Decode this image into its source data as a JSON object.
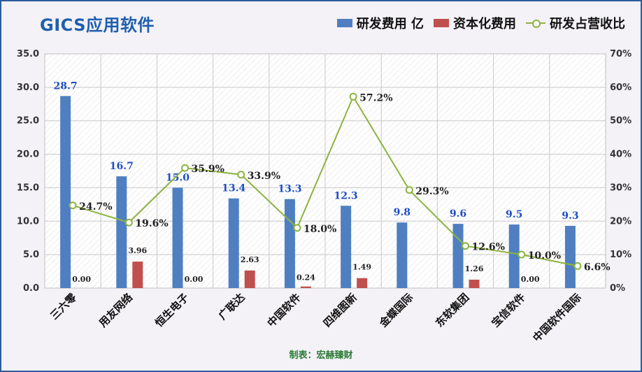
{
  "title": "GICS应用软件",
  "footer": "制表：宏赫臻财",
  "colors": {
    "rd": "#4f7fc1",
    "cap": "#c0504d",
    "ratio": "#8cb33f"
  },
  "chart_data": {
    "type": "bar",
    "categories": [
      "三六零",
      "用友网络",
      "恒生电子",
      "广联达",
      "中国软件",
      "四维图新",
      "金蝶国际",
      "东软集团",
      "宝信软件",
      "中国软件国际"
    ],
    "series": [
      {
        "name": "研发费用 亿",
        "axis": "left",
        "type": "bar",
        "values": [
          28.7,
          16.7,
          15.0,
          13.4,
          13.3,
          12.3,
          9.8,
          9.6,
          9.5,
          9.3
        ],
        "labels": [
          "28.7",
          "16.7",
          "15.0",
          "13.4",
          "13.3",
          "12.3",
          "9.8",
          "9.6",
          "9.5",
          "9.3"
        ]
      },
      {
        "name": "资本化费用",
        "axis": "left",
        "type": "bar",
        "values": [
          0.0,
          3.96,
          0.0,
          2.63,
          0.24,
          1.49,
          null,
          1.26,
          0.0,
          null
        ],
        "labels": [
          "0.00",
          "3.96",
          "0.00",
          "2.63",
          "0.24",
          "1.49",
          "",
          "1.26",
          "0.00",
          ""
        ]
      },
      {
        "name": "研发占营收比",
        "axis": "right",
        "type": "line",
        "values": [
          24.7,
          19.6,
          35.9,
          33.9,
          18.0,
          57.2,
          29.3,
          12.6,
          10.0,
          6.6
        ],
        "labels": [
          "24.7%",
          "19.6%",
          "35.9%",
          "33.9%",
          "18.0%",
          "57.2%",
          "29.3%",
          "12.6%",
          "10.0%",
          "6.6%"
        ]
      }
    ],
    "y_left": {
      "ylim": [
        0,
        35
      ],
      "ticks": [
        "0.0",
        "5.0",
        "10.0",
        "15.0",
        "20.0",
        "25.0",
        "30.0",
        "35.0"
      ]
    },
    "y_right": {
      "ylim": [
        0,
        70
      ],
      "ticks": [
        "0%",
        "10%",
        "20%",
        "30%",
        "40%",
        "50%",
        "60%",
        "70%"
      ]
    },
    "grid": true,
    "legend": "top-right"
  }
}
